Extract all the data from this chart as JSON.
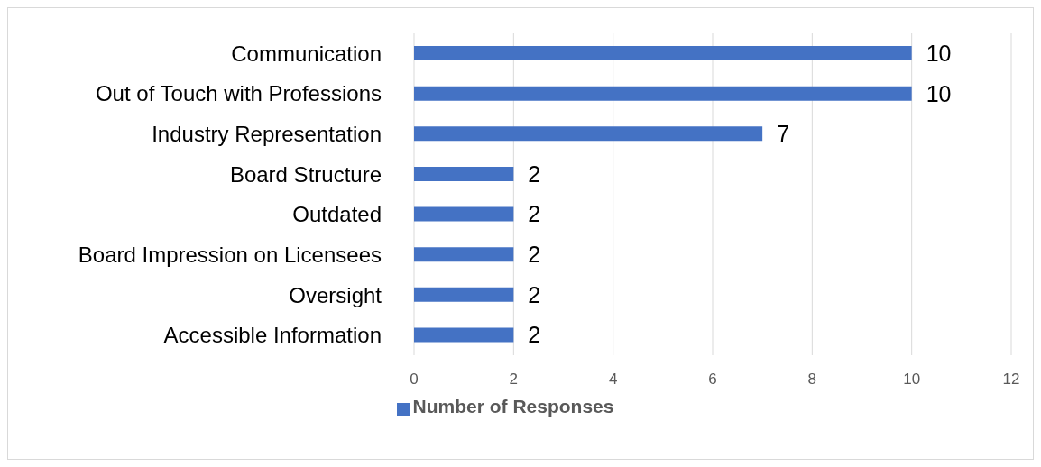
{
  "chart_data": {
    "type": "bar",
    "orientation": "horizontal",
    "categories": [
      "Communication",
      "Out of Touch with Professions",
      "Industry Representation",
      "Board Structure",
      "Outdated",
      "Board Impression on Licensees",
      "Oversight",
      "Accessible Information"
    ],
    "series": [
      {
        "name": "Number of Responses",
        "color": "#4472c4",
        "values": [
          10,
          10,
          7,
          2,
          2,
          2,
          2,
          2
        ]
      }
    ],
    "xlim": [
      0,
      12
    ],
    "xticks": [
      0,
      2,
      4,
      6,
      8,
      10,
      12
    ],
    "grid": "x",
    "legend": "bottom",
    "data_labels": true
  }
}
